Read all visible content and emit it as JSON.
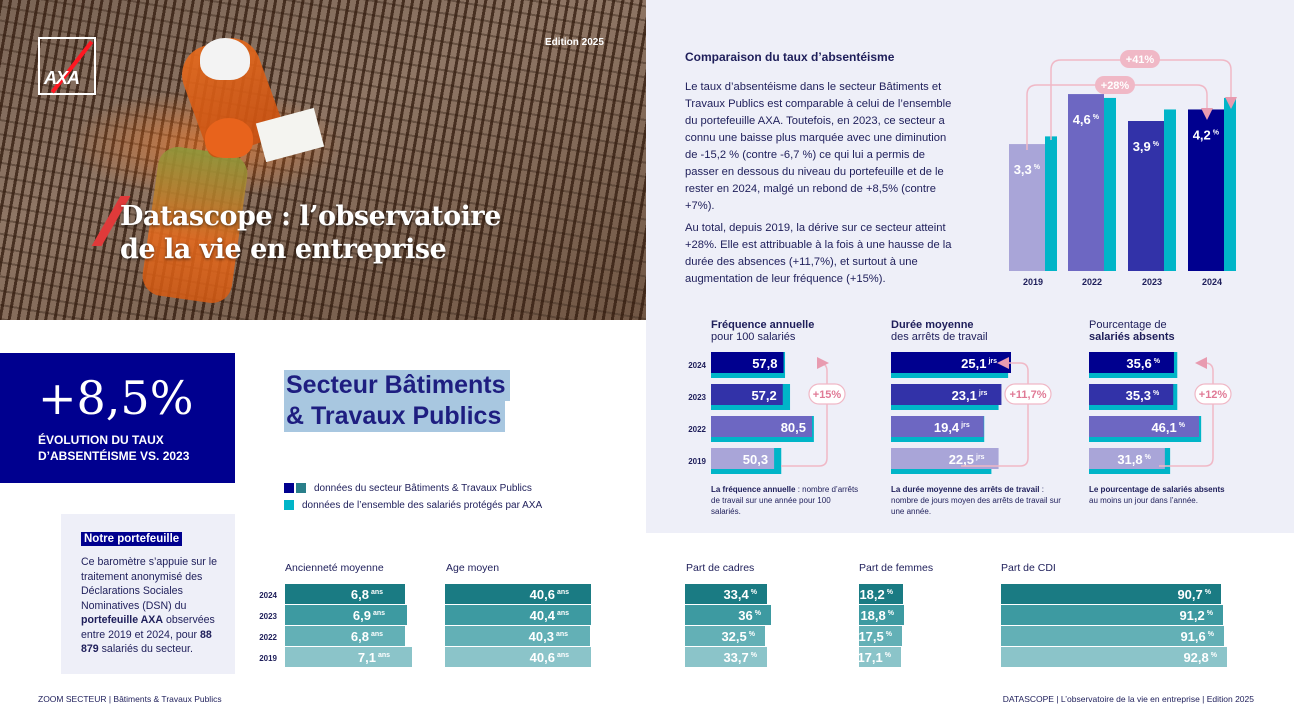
{
  "hero": {
    "edition": "Edition 2025",
    "title_line1": "Datascope : l’observatoire",
    "title_line2": "de la vie en entreprise",
    "logo": "AXA"
  },
  "kpi": {
    "value": "+8,5%",
    "label_line1": "ÉVOLUTION DU TAUX",
    "label_line2": "D’ABSENTÉISME VS. 2023"
  },
  "sector": {
    "line1": "Secteur Bâtiments",
    "line2": "& Travaux Publics"
  },
  "legend": {
    "sector": "données du secteur Bâtiments & Travaux Publics",
    "all": "données de l’ensemble des salariés protégés par AXA"
  },
  "portfolio": {
    "title": "Notre portefeuille",
    "text_a": "Ce baromètre s’appuie sur le traitement anonymisé des Déclarations Sociales Nominatives (DSN) du ",
    "text_b": "portefeuille AXA",
    "text_c": " observées entre 2019 et 2024, pour ",
    "text_d": "88 879",
    "text_e": " salariés du secteur."
  },
  "comparison": {
    "title": "Comparaison du taux d’absentéisme",
    "p1": "Le taux d’absentéisme dans le secteur Bâtiments et Travaux Publics est comparable à celui de l’ensemble du portefeuille AXA. Toutefois, en 2023, ce secteur a connu une baisse plus marquée avec une diminution de -15,2 % (contre -6,7 %) ce qui lui a permis de passer en dessous du niveau du portefeuille et de le rester en 2024, malgé un rebond de +8,5% (contre +7%).",
    "p2": "Au total, depuis 2019, la dérive sur ce secteur atteint +28%. Elle est attribuable à la fois à une hausse de la durée des absences (+11,7%), et surtout à une augmentation de leur fréquence (+15%)."
  },
  "colors": {
    "navy": "#00008f",
    "teal": "#00b5c8",
    "pink": "#e89bb0",
    "panel": "#eeeff8"
  },
  "chart_data": [
    {
      "type": "bar",
      "id": "absenteeism",
      "categories": [
        "2019",
        "2022",
        "2023",
        "2024"
      ],
      "series": [
        {
          "values": [
            3.3,
            4.6,
            3.9,
            4.2
          ],
          "labels": [
            "3,3",
            "4,6",
            "3,9",
            "4,2"
          ],
          "unit": "%"
        },
        {
          "values": [
            3.5,
            4.5,
            4.2,
            4.5
          ]
        }
      ],
      "annotations": [
        "+41%",
        "+28%"
      ]
    },
    {
      "type": "bar",
      "id": "frequency",
      "title_bold": "Fréquence annuelle",
      "title_rest": "pour 100 salariés",
      "categories": [
        "2024",
        "2023",
        "2022",
        "2019"
      ],
      "series": [
        {
          "values": [
            57.8,
            57.2,
            80.5,
            50.3
          ],
          "labels": [
            "57,8",
            "57,2",
            "80,5",
            "50,3"
          ],
          "unit": ""
        },
        {
          "values": [
            59,
            63,
            82,
            56
          ]
        }
      ],
      "change": "+15%",
      "note_bold": "La fréquence annuelle",
      "note_rest": " : nombre d’arrêts de travail sur une année pour 100 salariés."
    },
    {
      "type": "bar",
      "id": "duration",
      "title_bold": "Durée moyenne",
      "title_rest": "des arrêts de travail",
      "categories": [
        "2024",
        "2023",
        "2022",
        "2019"
      ],
      "series": [
        {
          "values": [
            25.1,
            23.1,
            19.4,
            22.5
          ],
          "labels": [
            "25,1",
            "23,1",
            "19,4",
            "22,5"
          ],
          "unit": "jrs"
        },
        {
          "values": [
            24.5,
            22.5,
            19.5,
            21
          ]
        }
      ],
      "change": "+11,7%",
      "note_bold": "La durée moyenne des arrêts de travail",
      "note_rest": " : nombre de jours moyen des arrêts de travail sur une année."
    },
    {
      "type": "bar",
      "id": "absent_share",
      "title_rest": "Pourcentage de",
      "title_bold": "salariés absents",
      "categories": [
        "2024",
        "2023",
        "2022",
        "2019"
      ],
      "series": [
        {
          "values": [
            35.6,
            35.3,
            46.1,
            31.8
          ],
          "labels": [
            "35,6",
            "35,3",
            "46,1",
            "31,8"
          ],
          "unit": "%"
        },
        {
          "values": [
            37,
            37,
            47,
            34
          ]
        }
      ],
      "change": "+12%",
      "note_bold": "Le pourcentage de salariés absents",
      "note_rest": " au moins un jour dans l’année."
    },
    {
      "type": "bar",
      "id": "seniority",
      "title": "Ancienneté moyenne",
      "categories": [
        "2024",
        "2023",
        "2022",
        "2019"
      ],
      "values": [
        6.8,
        6.9,
        6.8,
        7.1
      ],
      "labels": [
        "6,8",
        "6,9",
        "6,8",
        "7,1"
      ],
      "unit": "ans"
    },
    {
      "type": "bar",
      "id": "age",
      "title": "Age moyen",
      "categories": [
        "2024",
        "2023",
        "2022",
        "2019"
      ],
      "values": [
        40.6,
        40.4,
        40.3,
        40.6
      ],
      "labels": [
        "40,6",
        "40,4",
        "40,3",
        "40,6"
      ],
      "unit": "ans"
    },
    {
      "type": "bar",
      "id": "executives",
      "title": "Part de cadres",
      "categories": [
        "2024",
        "2023",
        "2022",
        "2019"
      ],
      "values": [
        33.4,
        36,
        32.5,
        33.7
      ],
      "labels": [
        "33,4",
        "36",
        "32,5",
        "33,7"
      ],
      "unit": "%"
    },
    {
      "type": "bar",
      "id": "women",
      "title": "Part de femmes",
      "categories": [
        "2024",
        "2023",
        "2022",
        "2019"
      ],
      "values": [
        18.2,
        18.8,
        17.5,
        17.1
      ],
      "labels": [
        "18,2",
        "18,8",
        "17,5",
        "17,1"
      ],
      "unit": "%"
    },
    {
      "type": "bar",
      "id": "cdi",
      "title": "Part de CDI",
      "categories": [
        "2024",
        "2023",
        "2022",
        "2019"
      ],
      "values": [
        90.7,
        91.2,
        91.6,
        92.8
      ],
      "labels": [
        "90,7",
        "91,2",
        "91,6",
        "92,8"
      ],
      "unit": "%"
    }
  ],
  "footer": {
    "left": "ZOOM SECTEUR  |  Bâtiments & Travaux Publics",
    "right": "DATASCOPE  |  L’observatoire de la vie en entreprise  |  Edition 2025"
  }
}
